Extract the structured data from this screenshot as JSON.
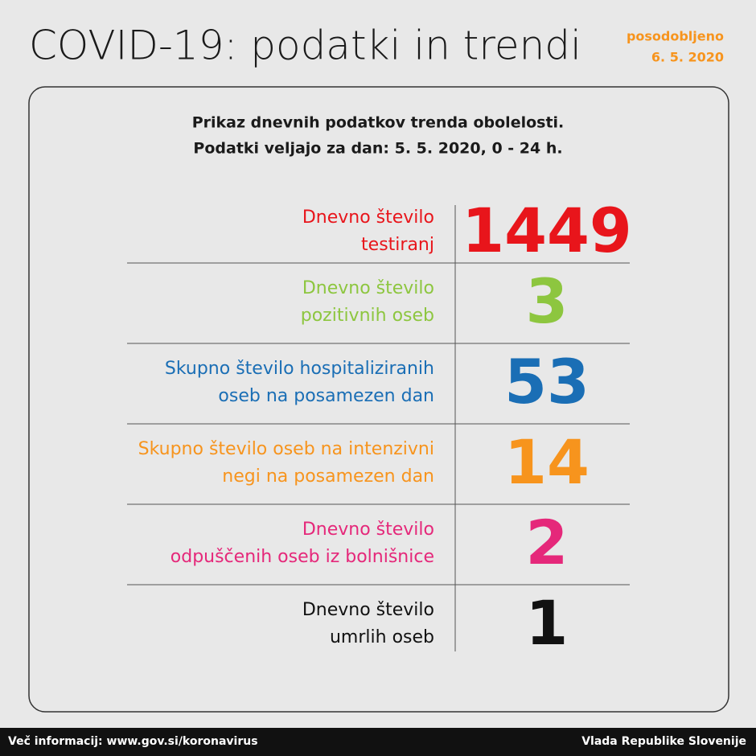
{
  "header": {
    "title": "COVID-19: podatki in trendi",
    "updated": [
      "posodobljeno",
      "6. 5. 2020"
    ]
  },
  "card": {
    "subtitle": [
      "Prikaz dnevnih podatkov trenda obolelosti.",
      "Podatki veljajo za dan: 5. 5. 2020, 0 - 24 h."
    ],
    "rows": [
      {
        "label": [
          "Dnevno število",
          "testiranj"
        ],
        "value": 1449,
        "color": "#e8151b"
      },
      {
        "label": [
          "Dnevno število",
          "pozitivnih oseb"
        ],
        "value": 3,
        "color": "#8dc63f"
      },
      {
        "label": [
          "Skupno število hospitaliziranih",
          "oseb na posamezen dan"
        ],
        "value": 53,
        "color": "#1a6eb5"
      },
      {
        "label": [
          "Skupno število oseb na intenzivni",
          "negi na posamezen dan"
        ],
        "value": 14,
        "color": "#f7941d"
      },
      {
        "label": [
          "Dnevno število",
          "odpuščenih oseb iz bolnišnice"
        ],
        "value": 2,
        "color": "#e5287a"
      },
      {
        "label": [
          "Dnevno število",
          "umrlih oseb"
        ],
        "value": 1,
        "color": "#111111"
      }
    ]
  },
  "footer": {
    "left": "Več informacij: www.gov.si/koronavirus",
    "right": "Vlada Republike Slovenije"
  }
}
